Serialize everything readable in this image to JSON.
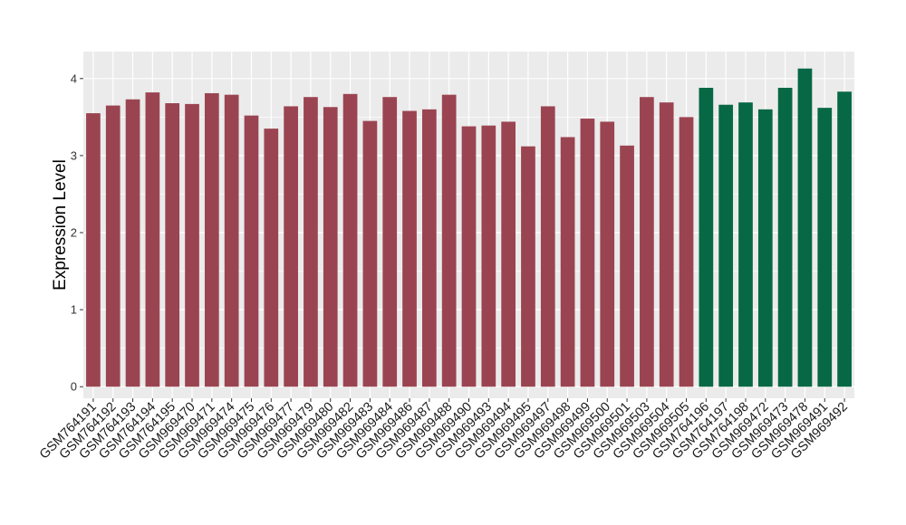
{
  "chart_data": {
    "type": "bar",
    "title": "",
    "xlabel": "",
    "ylabel": "Expression Level",
    "ylim": [
      -0.15,
      4.35
    ],
    "yticks": [
      0,
      1,
      2,
      3,
      4
    ],
    "grid": true,
    "colors": {
      "group1": "#9b4451",
      "group2": "#076845",
      "panel": "#ebebeb",
      "grid": "#ffffff"
    },
    "categories": [
      "GSM764191",
      "GSM764192",
      "GSM764193",
      "GSM764194",
      "GSM764195",
      "GSM969470",
      "GSM969471",
      "GSM969474",
      "GSM969475",
      "GSM969476",
      "GSM969477",
      "GSM969479",
      "GSM969480",
      "GSM969482",
      "GSM969483",
      "GSM969484",
      "GSM969486",
      "GSM969487",
      "GSM969488",
      "GSM969490",
      "GSM969493",
      "GSM969494",
      "GSM969495",
      "GSM969497",
      "GSM969498",
      "GSM969499",
      "GSM969500",
      "GSM969501",
      "GSM969503",
      "GSM969504",
      "GSM969505",
      "GSM764196",
      "GSM764197",
      "GSM764198",
      "GSM969472",
      "GSM969473",
      "GSM969478",
      "GSM969491",
      "GSM969492"
    ],
    "values": [
      3.55,
      3.65,
      3.73,
      3.82,
      3.68,
      3.67,
      3.81,
      3.79,
      3.52,
      3.35,
      3.64,
      3.76,
      3.63,
      3.8,
      3.45,
      3.76,
      3.58,
      3.6,
      3.79,
      3.38,
      3.39,
      3.44,
      3.12,
      3.64,
      3.24,
      3.48,
      3.44,
      3.13,
      3.76,
      3.69,
      3.5,
      3.88,
      3.66,
      3.69,
      3.6,
      3.88,
      4.13,
      3.62,
      3.83
    ],
    "groups": [
      "group1",
      "group1",
      "group1",
      "group1",
      "group1",
      "group1",
      "group1",
      "group1",
      "group1",
      "group1",
      "group1",
      "group1",
      "group1",
      "group1",
      "group1",
      "group1",
      "group1",
      "group1",
      "group1",
      "group1",
      "group1",
      "group1",
      "group1",
      "group1",
      "group1",
      "group1",
      "group1",
      "group1",
      "group1",
      "group1",
      "group1",
      "group2",
      "group2",
      "group2",
      "group2",
      "group2",
      "group2",
      "group2",
      "group2"
    ]
  }
}
